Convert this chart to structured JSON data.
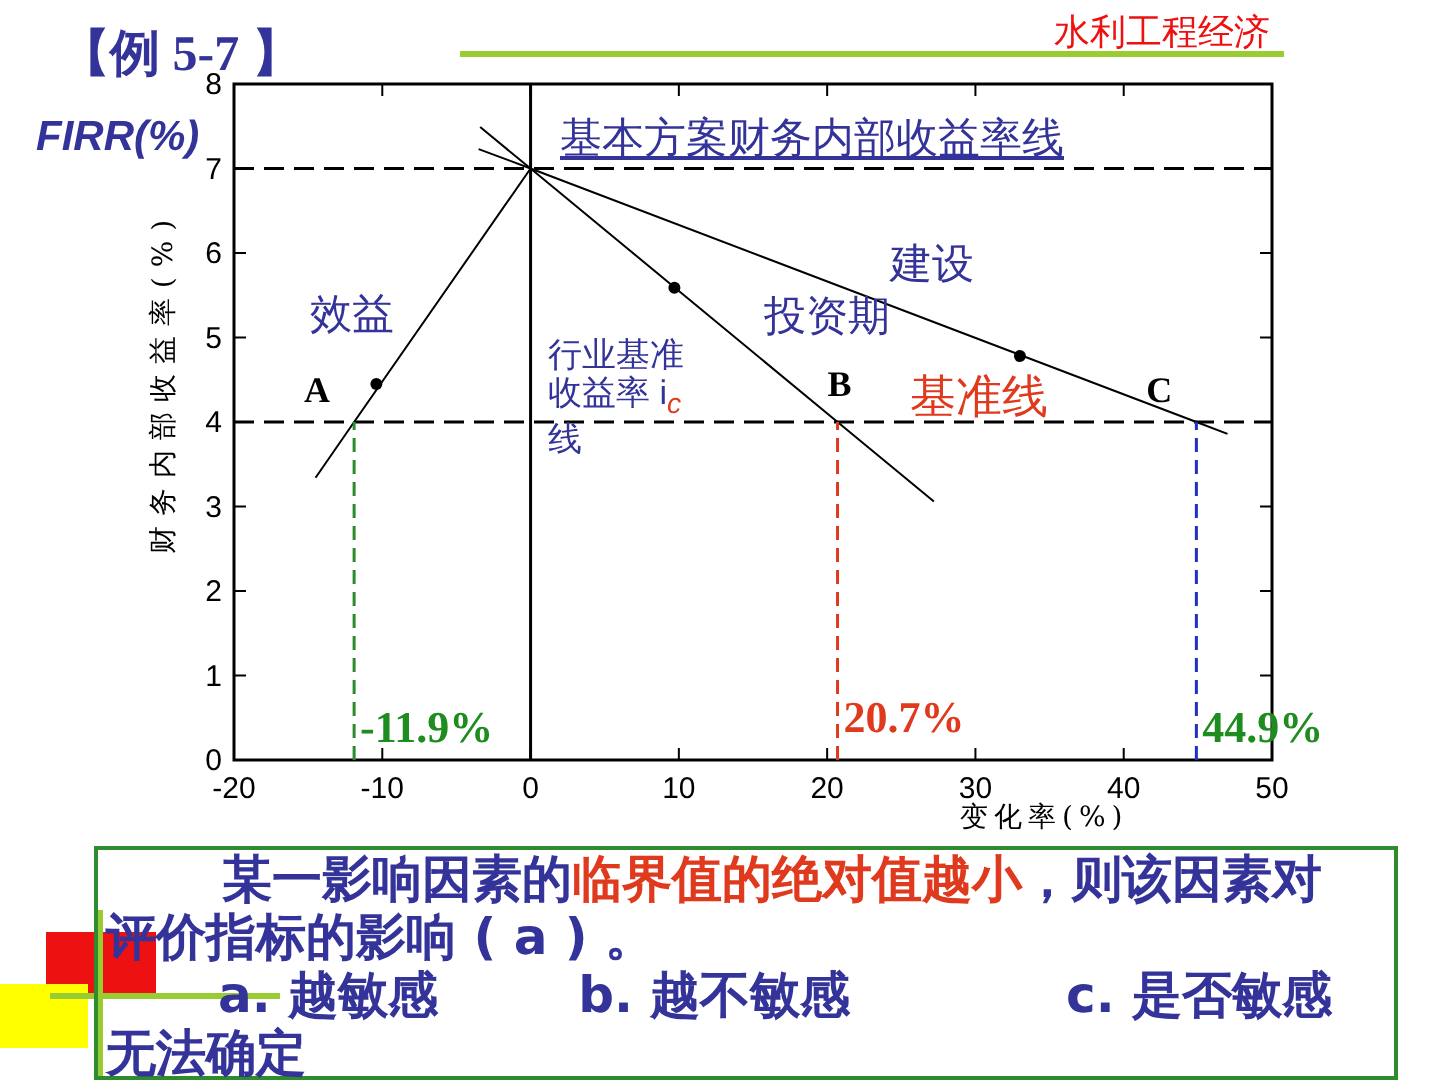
{
  "chart_data": {
    "type": "line",
    "title": "【例 5-7 】",
    "ylabel": "财务内部收益率(%)",
    "xlabel": "变化率(%)",
    "xlim": [
      -20,
      50
    ],
    "xticks": [
      -20,
      -10,
      0,
      10,
      20,
      30,
      40,
      50
    ],
    "ylim": [
      0,
      8
    ],
    "yticks": [
      0,
      1,
      2,
      3,
      4,
      5,
      6,
      7,
      8
    ],
    "grid": false,
    "series": [
      {
        "color": "#000000",
        "x": [
          -14.5,
          -11.9,
          0
        ],
        "values": [
          3.34,
          4,
          7
        ]
      },
      {
        "color": "#000000",
        "x": [
          -3.4,
          0,
          20.7,
          27.2
        ],
        "values": [
          7.49,
          7,
          4,
          3.06
        ]
      },
      {
        "color": "#000000",
        "x": [
          -3.5,
          0,
          44.9,
          47.0
        ],
        "values": [
          7.23,
          7,
          4,
          3.86
        ]
      },
      {
        "type": "scatter",
        "marker": "circle",
        "color": "#000000",
        "x": [
          -10.4,
          9.7,
          33.0
        ],
        "values": [
          4.45,
          5.59,
          4.78
        ]
      },
      {
        "color": "#2e8b2e",
        "line_style": "dashed",
        "x": [
          -11.9,
          -11.9
        ],
        "values": [
          0,
          4
        ]
      },
      {
        "color": "#e03a1e",
        "line_style": "dashed",
        "x": [
          20.7,
          20.7
        ],
        "values": [
          0,
          4
        ]
      },
      {
        "color": "#2030c0",
        "line_style": "dashed",
        "x": [
          44.9,
          44.9
        ],
        "values": [
          0,
          4
        ]
      }
    ],
    "ref_lines": [
      {
        "axis": "y",
        "value": 7,
        "label": "基本方案财务内部收益率线",
        "color": "#000000",
        "line_style": "dashed"
      },
      {
        "axis": "y",
        "value": 4,
        "label": "行业基准收益率 i$_{c}$ 线",
        "color": "#000000",
        "line_style": "dashed"
      }
    ],
    "annotations": [
      "水利工程经济",
      "FIRR(%)",
      "效益",
      "建设",
      "投资期",
      "基准线",
      {
        "text": "A",
        "x": -11.9,
        "y": 4
      },
      {
        "text": "B",
        "x": 20.7,
        "y": 4
      },
      {
        "text": "C",
        "x": 44.9,
        "y": 4
      },
      {
        "text": "-11.9%",
        "x": -11.9,
        "y": 0
      },
      {
        "text": "20.7%",
        "x": 20.7,
        "y": 0
      },
      {
        "text": "44.9%",
        "x": 44.9,
        "y": 0
      },
      "某一影响因素的",
      "临界值的绝对值越小",
      "，则该因素对评价指标的影响 (  a  ) 。",
      "a. 越敏感",
      "b. 越不敏感",
      "c.  是否敏感无法确定"
    ]
  }
}
